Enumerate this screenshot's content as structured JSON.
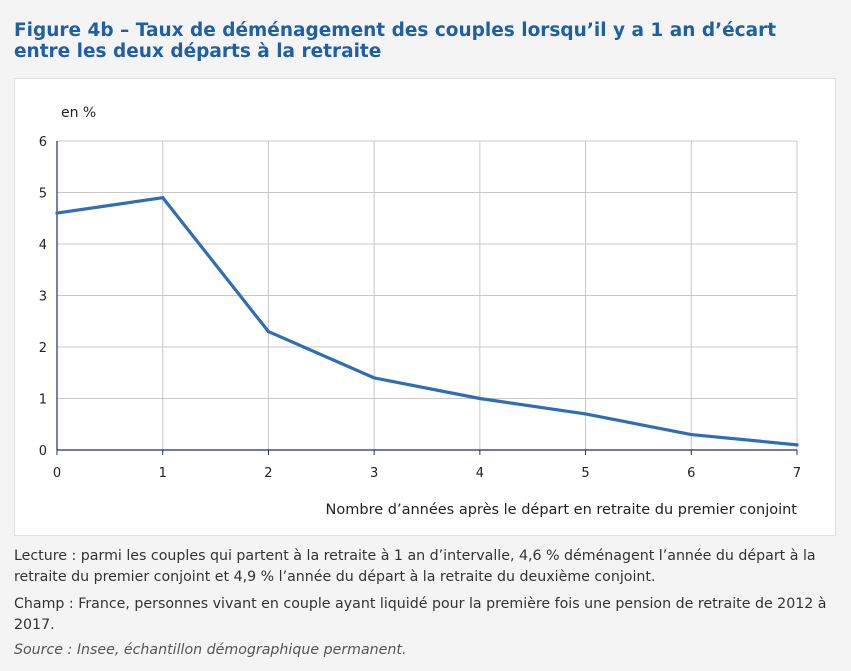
{
  "title": "Figure 4b – Taux de déménagement des couples lorsqu’il y a 1 an d’écart entre les deux départs à la retraite",
  "notes": {
    "lecture": "Lecture : parmi les couples qui partent à la retraite à 1 an d’intervalle, 4,6 % déménagent l’année du départ à la retraite du premier conjoint et 4,9 % l’année du départ à la retraite du deuxième conjoint.",
    "champ": "Champ : France, personnes vivant en couple ayant liquidé pour la première fois une pension de retraite de 2012 à 2017.",
    "source": "Source : Insee, échantillon démographique permanent."
  },
  "chart_data": {
    "type": "line",
    "x": [
      0,
      1,
      2,
      3,
      4,
      5,
      6,
      7
    ],
    "series": [
      {
        "values": [
          4.6,
          4.9,
          2.3,
          1.4,
          1.0,
          0.7,
          0.3,
          0.1
        ],
        "color": "#2f6db5"
      }
    ],
    "xlabel": "Nombre d’années après le départ en retraite du premier conjoint",
    "ylabel": "en %",
    "xlim": [
      0,
      7
    ],
    "ylim": [
      0,
      6
    ],
    "xticks": [
      "0",
      "1",
      "2",
      "3",
      "4",
      "5",
      "6",
      "7"
    ],
    "yticks": [
      "0",
      "1",
      "2",
      "3",
      "4",
      "5",
      "6"
    ],
    "grid": true,
    "colors": {
      "line": "#2f6db5",
      "grid": "#c8c8c8",
      "axis": "#1a2e6e"
    }
  }
}
